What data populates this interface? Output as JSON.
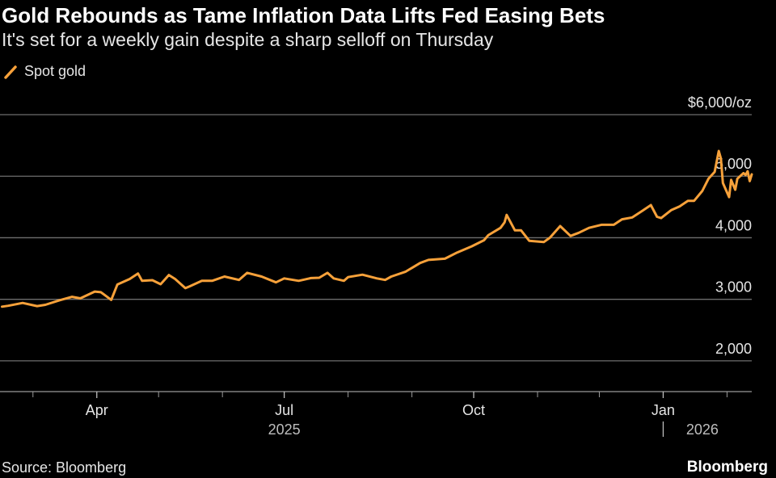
{
  "header": {
    "title": "Gold Rebounds as Tame Inflation Data Lifts Fed Easing Bets",
    "subtitle": "It's set for a weekly gain despite a sharp selloff on Thursday"
  },
  "footer": {
    "source": "Source: Bloomberg",
    "brand": "Bloomberg"
  },
  "colors": {
    "series": "#f7a13a",
    "grid": "#6e6e6e",
    "text": "#e6e6e6"
  },
  "chart_data": {
    "type": "line",
    "title": "Gold Rebounds as Tame Inflation Data Lifts Fed Easing Bets",
    "subtitle": "It's set for a weekly gain despite a sharp selloff on Thursday",
    "legend": {
      "placement": "top-left"
    },
    "grid": true,
    "x": {
      "type": "time",
      "range": [
        "2025-02-13",
        "2026-02-13"
      ],
      "month_ticks": [
        "Apr",
        "Jul",
        "Oct",
        "Jan"
      ],
      "month_tick_dates": [
        "2025-04-01",
        "2025-07-01",
        "2025-10-01",
        "2026-01-01"
      ],
      "minor_tick_dates": [
        "2025-03-01",
        "2025-05-01",
        "2025-06-01",
        "2025-08-01",
        "2025-09-01",
        "2025-11-01",
        "2025-12-01",
        "2026-02-01"
      ],
      "year_labels": [
        "2025",
        "2026"
      ],
      "year_label_dates": [
        "2025-07-01",
        "2026-01-20"
      ],
      "year_divider_date": "2026-01-01"
    },
    "y": {
      "range": [
        1500,
        6000
      ],
      "ticks": [
        2000,
        3000,
        4000,
        5000,
        6000
      ],
      "tick_labels": [
        "2,000",
        "3,000",
        "4,000",
        "5,000",
        "$6,000/oz"
      ],
      "side": "right"
    },
    "series": [
      {
        "name": "Spot gold",
        "points": [
          [
            "2025-02-14",
            2880
          ],
          [
            "2025-02-17",
            2895
          ],
          [
            "2025-02-24",
            2940
          ],
          [
            "2025-03-03",
            2890
          ],
          [
            "2025-03-07",
            2910
          ],
          [
            "2025-03-14",
            2985
          ],
          [
            "2025-03-20",
            3040
          ],
          [
            "2025-03-24",
            3015
          ],
          [
            "2025-03-31",
            3125
          ],
          [
            "2025-04-03",
            3115
          ],
          [
            "2025-04-08",
            2990
          ],
          [
            "2025-04-11",
            3240
          ],
          [
            "2025-04-17",
            3330
          ],
          [
            "2025-04-21",
            3420
          ],
          [
            "2025-04-23",
            3300
          ],
          [
            "2025-04-28",
            3310
          ],
          [
            "2025-05-02",
            3245
          ],
          [
            "2025-05-06",
            3395
          ],
          [
            "2025-05-09",
            3330
          ],
          [
            "2025-05-14",
            3180
          ],
          [
            "2025-05-16",
            3210
          ],
          [
            "2025-05-22",
            3300
          ],
          [
            "2025-05-27",
            3300
          ],
          [
            "2025-06-02",
            3370
          ],
          [
            "2025-06-09",
            3315
          ],
          [
            "2025-06-13",
            3430
          ],
          [
            "2025-06-20",
            3370
          ],
          [
            "2025-06-27",
            3275
          ],
          [
            "2025-07-01",
            3340
          ],
          [
            "2025-07-08",
            3300
          ],
          [
            "2025-07-14",
            3345
          ],
          [
            "2025-07-18",
            3350
          ],
          [
            "2025-07-22",
            3430
          ],
          [
            "2025-07-25",
            3340
          ],
          [
            "2025-07-30",
            3300
          ],
          [
            "2025-08-01",
            3360
          ],
          [
            "2025-08-08",
            3400
          ],
          [
            "2025-08-15",
            3340
          ],
          [
            "2025-08-19",
            3315
          ],
          [
            "2025-08-22",
            3370
          ],
          [
            "2025-08-29",
            3450
          ],
          [
            "2025-09-02",
            3530
          ],
          [
            "2025-09-05",
            3590
          ],
          [
            "2025-09-09",
            3640
          ],
          [
            "2025-09-17",
            3660
          ],
          [
            "2025-09-23",
            3760
          ],
          [
            "2025-09-30",
            3860
          ],
          [
            "2025-10-06",
            3960
          ],
          [
            "2025-10-08",
            4040
          ],
          [
            "2025-10-14",
            4160
          ],
          [
            "2025-10-16",
            4250
          ],
          [
            "2025-10-17",
            4370
          ],
          [
            "2025-10-21",
            4120
          ],
          [
            "2025-10-24",
            4120
          ],
          [
            "2025-10-28",
            3950
          ],
          [
            "2025-11-04",
            3930
          ],
          [
            "2025-11-07",
            4000
          ],
          [
            "2025-11-12",
            4190
          ],
          [
            "2025-11-17",
            4030
          ],
          [
            "2025-11-21",
            4080
          ],
          [
            "2025-11-26",
            4160
          ],
          [
            "2025-12-02",
            4210
          ],
          [
            "2025-12-08",
            4210
          ],
          [
            "2025-12-12",
            4300
          ],
          [
            "2025-12-17",
            4330
          ],
          [
            "2025-12-22",
            4440
          ],
          [
            "2025-12-26",
            4530
          ],
          [
            "2025-12-29",
            4340
          ],
          [
            "2025-12-31",
            4320
          ],
          [
            "2026-01-05",
            4450
          ],
          [
            "2026-01-09",
            4510
          ],
          [
            "2026-01-13",
            4600
          ],
          [
            "2026-01-16",
            4600
          ],
          [
            "2026-01-20",
            4760
          ],
          [
            "2026-01-23",
            4960
          ],
          [
            "2026-01-26",
            5070
          ],
          [
            "2026-01-28",
            5410
          ],
          [
            "2026-01-29",
            5290
          ],
          [
            "2026-01-30",
            4890
          ],
          [
            "2026-02-02",
            4660
          ],
          [
            "2026-02-03",
            4940
          ],
          [
            "2026-02-05",
            4780
          ],
          [
            "2026-02-06",
            4960
          ],
          [
            "2026-02-09",
            5050
          ],
          [
            "2026-02-10",
            5020
          ],
          [
            "2026-02-11",
            5080
          ],
          [
            "2026-02-12",
            4920
          ],
          [
            "2026-02-13",
            5030
          ]
        ]
      }
    ]
  }
}
